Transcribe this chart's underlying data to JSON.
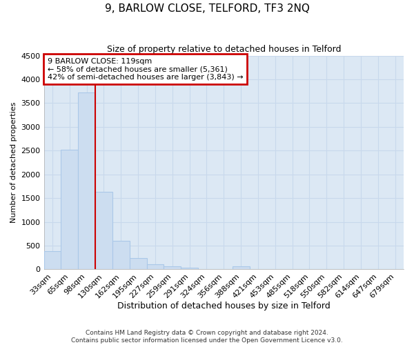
{
  "title": "9, BARLOW CLOSE, TELFORD, TF3 2NQ",
  "subtitle": "Size of property relative to detached houses in Telford",
  "xlabel": "Distribution of detached houses by size in Telford",
  "ylabel": "Number of detached properties",
  "footnote1": "Contains HM Land Registry data © Crown copyright and database right 2024.",
  "footnote2": "Contains public sector information licensed under the Open Government Licence v3.0.",
  "categories": [
    "33sqm",
    "65sqm",
    "98sqm",
    "130sqm",
    "162sqm",
    "195sqm",
    "227sqm",
    "259sqm",
    "291sqm",
    "324sqm",
    "356sqm",
    "388sqm",
    "421sqm",
    "453sqm",
    "485sqm",
    "518sqm",
    "550sqm",
    "582sqm",
    "614sqm",
    "647sqm",
    "679sqm"
  ],
  "values": [
    380,
    2520,
    3720,
    1630,
    600,
    245,
    100,
    60,
    40,
    0,
    0,
    60,
    0,
    0,
    0,
    0,
    0,
    0,
    0,
    0,
    0
  ],
  "bar_color": "#ccddf0",
  "bar_edge_color": "#aac8e8",
  "red_line_index": 2,
  "annotation_title": "9 BARLOW CLOSE: 119sqm",
  "annotation_line2": "← 58% of detached houses are smaller (5,361)",
  "annotation_line3": "42% of semi-detached houses are larger (3,843) →",
  "annotation_box_color": "#ffffff",
  "annotation_box_edgecolor": "#cc0000",
  "ylim_max": 4500,
  "yticks": [
    0,
    500,
    1000,
    1500,
    2000,
    2500,
    3000,
    3500,
    4000,
    4500
  ],
  "grid_color": "#c8d8ec",
  "plot_bg_color": "#dce8f4",
  "fig_bg_color": "#ffffff",
  "title_fontsize": 11,
  "subtitle_fontsize": 9,
  "ylabel_fontsize": 8,
  "xlabel_fontsize": 9,
  "annotation_fontsize": 8,
  "tick_fontsize": 8,
  "footnote_fontsize": 6.5
}
